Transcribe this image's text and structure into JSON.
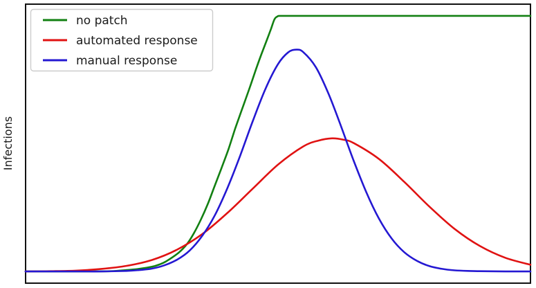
{
  "figure": {
    "background": "#ffffff",
    "frame_color": "#111111"
  },
  "chart_data": {
    "type": "line",
    "title": "",
    "xlabel": "",
    "ylabel": "Infections",
    "xlim": [
      0,
      1
    ],
    "ylim": [
      0,
      1
    ],
    "x_tick_labels": [],
    "y_tick_labels": [],
    "grid": false,
    "legend_position": "upper left",
    "units_note": "axes are unlabeled; coordinates normalized 0-1 (x = fraction of time span, y = fraction of plot height)",
    "series": [
      {
        "name": "no patch",
        "color": "#128012",
        "shape": "logistic rise saturating at plateau",
        "peak": {
          "x": 0.51,
          "y": 0.958
        },
        "points": [
          [
            0.0,
            0.042
          ],
          [
            0.06,
            0.042
          ],
          [
            0.115,
            0.042
          ],
          [
            0.169,
            0.043
          ],
          [
            0.2,
            0.047
          ],
          [
            0.224,
            0.051
          ],
          [
            0.251,
            0.059
          ],
          [
            0.265,
            0.067
          ],
          [
            0.279,
            0.079
          ],
          [
            0.303,
            0.109
          ],
          [
            0.32,
            0.141
          ],
          [
            0.333,
            0.178
          ],
          [
            0.347,
            0.227
          ],
          [
            0.361,
            0.284
          ],
          [
            0.374,
            0.346
          ],
          [
            0.388,
            0.412
          ],
          [
            0.402,
            0.481
          ],
          [
            0.415,
            0.553
          ],
          [
            0.429,
            0.625
          ],
          [
            0.443,
            0.696
          ],
          [
            0.456,
            0.765
          ],
          [
            0.467,
            0.82
          ],
          [
            0.478,
            0.872
          ],
          [
            0.486,
            0.911
          ],
          [
            0.493,
            0.946
          ],
          [
            0.499,
            0.956
          ],
          [
            0.506,
            0.958
          ],
          [
            0.55,
            0.958
          ],
          [
            0.65,
            0.958
          ],
          [
            0.75,
            0.958
          ],
          [
            0.85,
            0.958
          ],
          [
            0.95,
            0.958
          ],
          [
            1.0,
            0.958
          ]
        ]
      },
      {
        "name": "automated response",
        "color": "#e01212",
        "shape": "wide bell curve",
        "peak": {
          "x": 0.607,
          "y": 0.519
        },
        "points": [
          [
            0.0,
            0.042
          ],
          [
            0.05,
            0.043
          ],
          [
            0.1,
            0.045
          ],
          [
            0.15,
            0.051
          ],
          [
            0.2,
            0.062
          ],
          [
            0.25,
            0.083
          ],
          [
            0.3,
            0.12
          ],
          [
            0.35,
            0.176
          ],
          [
            0.4,
            0.252
          ],
          [
            0.45,
            0.339
          ],
          [
            0.5,
            0.425
          ],
          [
            0.55,
            0.49
          ],
          [
            0.58,
            0.511
          ],
          [
            0.607,
            0.519
          ],
          [
            0.63,
            0.514
          ],
          [
            0.65,
            0.502
          ],
          [
            0.7,
            0.445
          ],
          [
            0.75,
            0.363
          ],
          [
            0.8,
            0.274
          ],
          [
            0.85,
            0.194
          ],
          [
            0.9,
            0.133
          ],
          [
            0.95,
            0.091
          ],
          [
            1.0,
            0.066
          ]
        ]
      },
      {
        "name": "manual response",
        "color": "#2418d2",
        "shape": "tall narrow bell curve",
        "peak": {
          "x": 0.536,
          "y": 0.837
        },
        "points": [
          [
            0.0,
            0.042
          ],
          [
            0.1,
            0.042
          ],
          [
            0.15,
            0.042
          ],
          [
            0.2,
            0.044
          ],
          [
            0.225,
            0.047
          ],
          [
            0.25,
            0.052
          ],
          [
            0.275,
            0.064
          ],
          [
            0.3,
            0.084
          ],
          [
            0.325,
            0.117
          ],
          [
            0.35,
            0.17
          ],
          [
            0.375,
            0.244
          ],
          [
            0.4,
            0.342
          ],
          [
            0.425,
            0.457
          ],
          [
            0.45,
            0.581
          ],
          [
            0.475,
            0.696
          ],
          [
            0.5,
            0.785
          ],
          [
            0.52,
            0.827
          ],
          [
            0.536,
            0.837
          ],
          [
            0.55,
            0.828
          ],
          [
            0.575,
            0.774
          ],
          [
            0.6,
            0.679
          ],
          [
            0.625,
            0.561
          ],
          [
            0.65,
            0.438
          ],
          [
            0.675,
            0.325
          ],
          [
            0.7,
            0.231
          ],
          [
            0.725,
            0.16
          ],
          [
            0.75,
            0.111
          ],
          [
            0.775,
            0.08
          ],
          [
            0.8,
            0.061
          ],
          [
            0.825,
            0.051
          ],
          [
            0.85,
            0.046
          ],
          [
            0.875,
            0.044
          ],
          [
            0.9,
            0.043
          ],
          [
            0.95,
            0.042
          ],
          [
            1.0,
            0.042
          ]
        ]
      }
    ]
  }
}
